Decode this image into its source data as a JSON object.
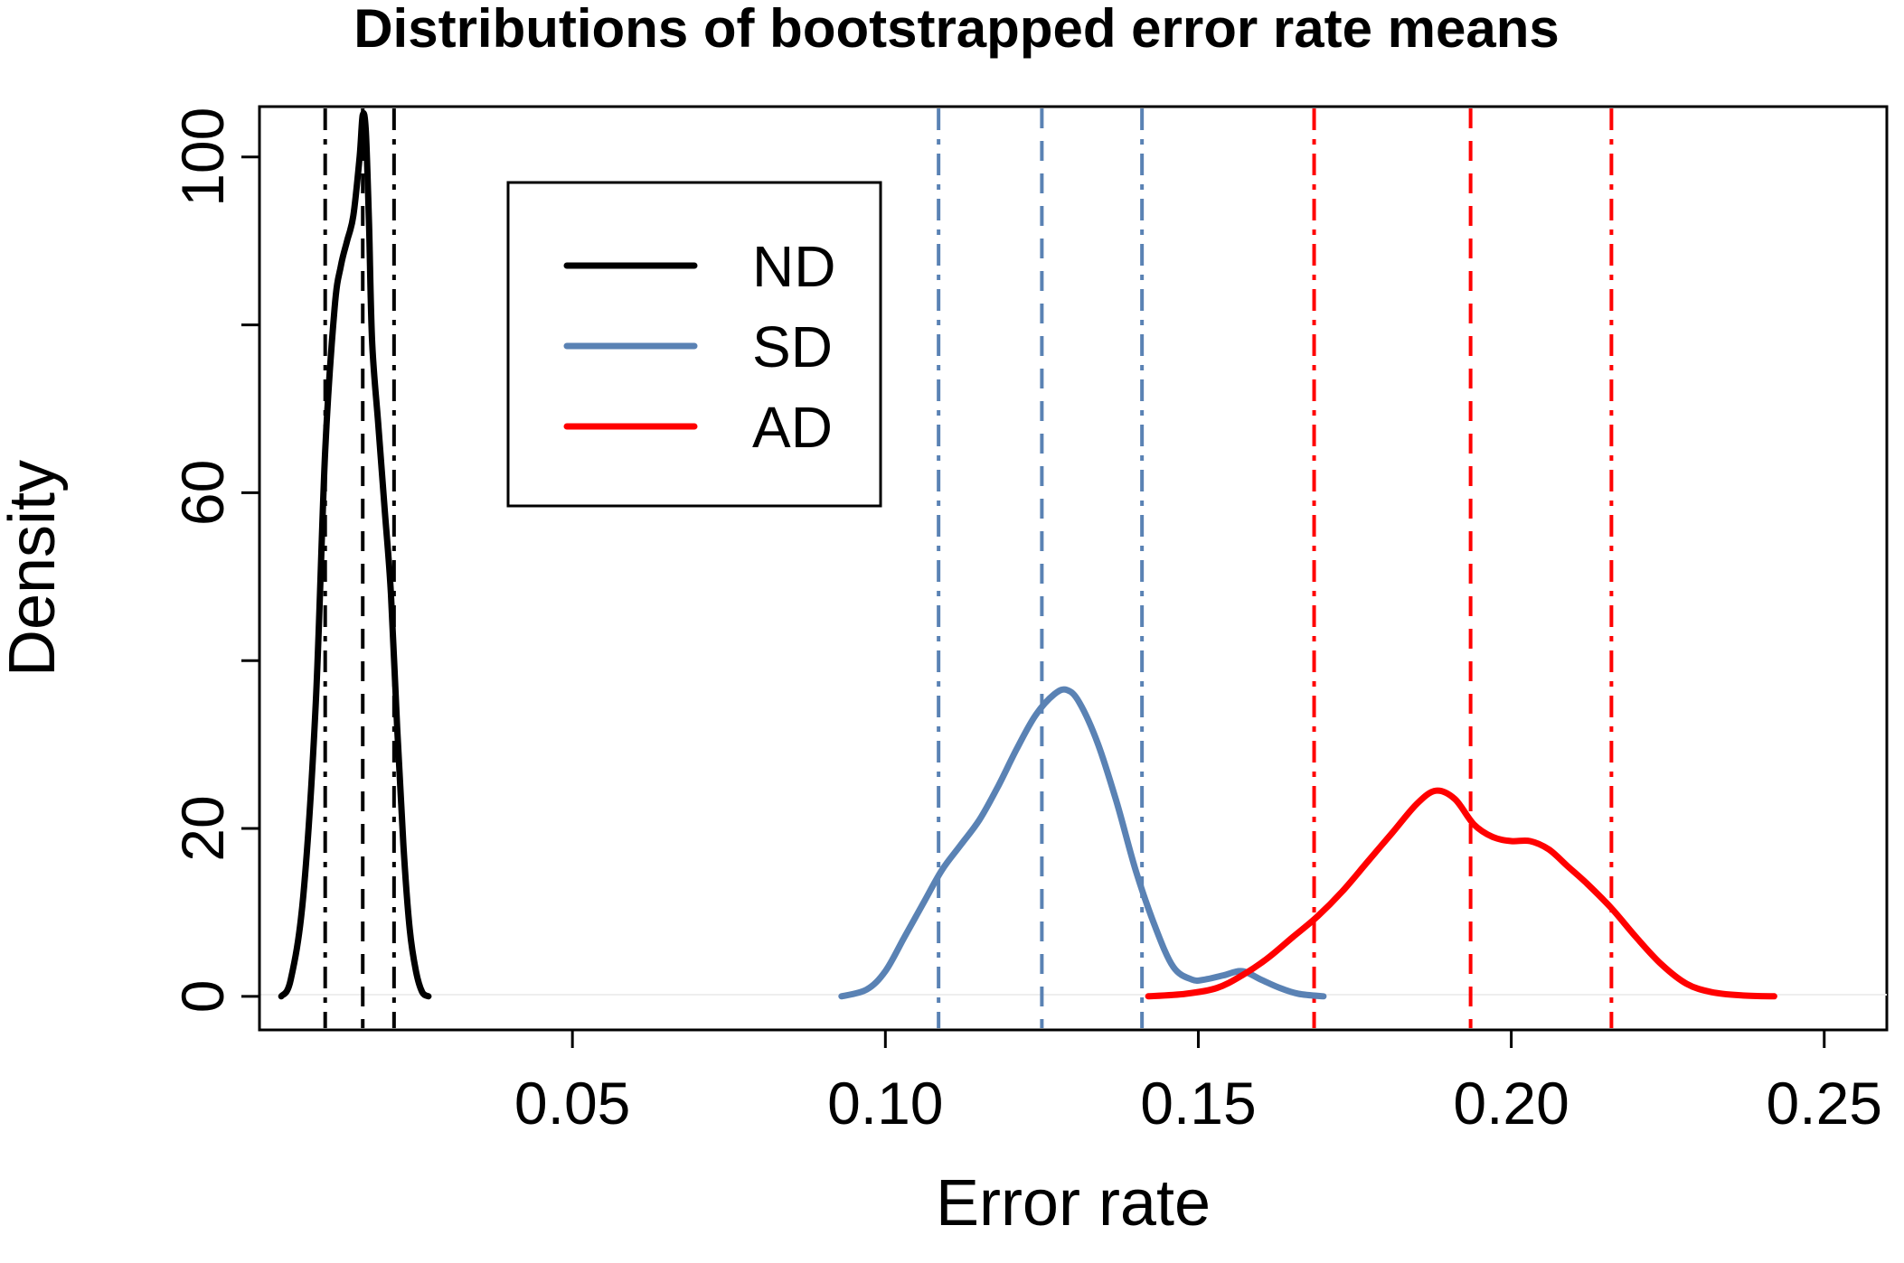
{
  "chart_data": {
    "type": "line",
    "title": "Distributions of bootstrapped error rate means",
    "xlabel": "Error rate",
    "ylabel": "Density",
    "xlim": [
      0.0,
      0.26
    ],
    "ylim": [
      -4,
      106
    ],
    "x_ticks": [
      0.05,
      0.1,
      0.15,
      0.2,
      0.25
    ],
    "x_tick_labels": [
      "0.05",
      "0.10",
      "0.15",
      "0.20",
      "0.25"
    ],
    "y_ticks": [
      0,
      20,
      40,
      60,
      80,
      100
    ],
    "y_tick_labels": [
      "0",
      "20",
      "",
      "60",
      "",
      "100"
    ],
    "grid": false,
    "legend_position": "top-left",
    "series": [
      {
        "name": "ND",
        "color": "#000000",
        "x": [
          0.0035,
          0.005,
          0.007,
          0.009,
          0.0105,
          0.012,
          0.013,
          0.014,
          0.015,
          0.016,
          0.0165,
          0.017,
          0.0175,
          0.018,
          0.019,
          0.02,
          0.021,
          0.022,
          0.023,
          0.024,
          0.025,
          0.026,
          0.027
        ],
        "y": [
          0,
          2,
          12,
          35,
          65,
          82,
          87,
          90,
          93,
          100,
          105,
          103,
          92,
          78,
          68,
          58,
          48,
          32,
          18,
          8,
          3,
          0.5,
          0
        ]
      },
      {
        "name": "SD",
        "color": "#5a82b4",
        "x": [
          0.093,
          0.097,
          0.1,
          0.103,
          0.106,
          0.109,
          0.112,
          0.115,
          0.118,
          0.121,
          0.124,
          0.127,
          0.129,
          0.131,
          0.134,
          0.137,
          0.14,
          0.143,
          0.146,
          0.149,
          0.151,
          0.154,
          0.157,
          0.16,
          0.163,
          0.166,
          0.17
        ],
        "y": [
          0,
          0.8,
          3,
          7,
          11,
          15,
          18,
          21,
          25,
          29.5,
          33.5,
          36,
          36.5,
          35,
          30,
          23,
          15,
          8.5,
          3.5,
          2,
          2,
          2.5,
          3,
          2,
          1,
          0.3,
          0
        ]
      },
      {
        "name": "AD",
        "color": "#ff0000",
        "x": [
          0.142,
          0.148,
          0.153,
          0.157,
          0.161,
          0.165,
          0.169,
          0.173,
          0.177,
          0.181,
          0.185,
          0.188,
          0.191,
          0.194,
          0.197,
          0.2,
          0.203,
          0.206,
          0.209,
          0.212,
          0.216,
          0.22,
          0.224,
          0.228,
          0.232,
          0.237,
          0.242
        ],
        "y": [
          0,
          0.3,
          1,
          2.5,
          4.5,
          7,
          9.5,
          12.5,
          16,
          19.5,
          23,
          24.5,
          23.5,
          20.5,
          19,
          18.5,
          18.5,
          17.5,
          15.5,
          13.5,
          10.5,
          7,
          3.8,
          1.5,
          0.5,
          0.1,
          0
        ]
      }
    ],
    "vlines": [
      {
        "x": 0.0105,
        "color": "#000000",
        "style": "dashdot"
      },
      {
        "x": 0.0165,
        "color": "#000000",
        "style": "dashed"
      },
      {
        "x": 0.0215,
        "color": "#000000",
        "style": "dashdot"
      },
      {
        "x": 0.1085,
        "color": "#5a82b4",
        "style": "dashdot"
      },
      {
        "x": 0.125,
        "color": "#5a82b4",
        "style": "dashed"
      },
      {
        "x": 0.141,
        "color": "#5a82b4",
        "style": "dashdot"
      },
      {
        "x": 0.1685,
        "color": "#ff0000",
        "style": "dashdot"
      },
      {
        "x": 0.1935,
        "color": "#ff0000",
        "style": "dashed"
      },
      {
        "x": 0.216,
        "color": "#ff0000",
        "style": "dashdot"
      }
    ]
  }
}
